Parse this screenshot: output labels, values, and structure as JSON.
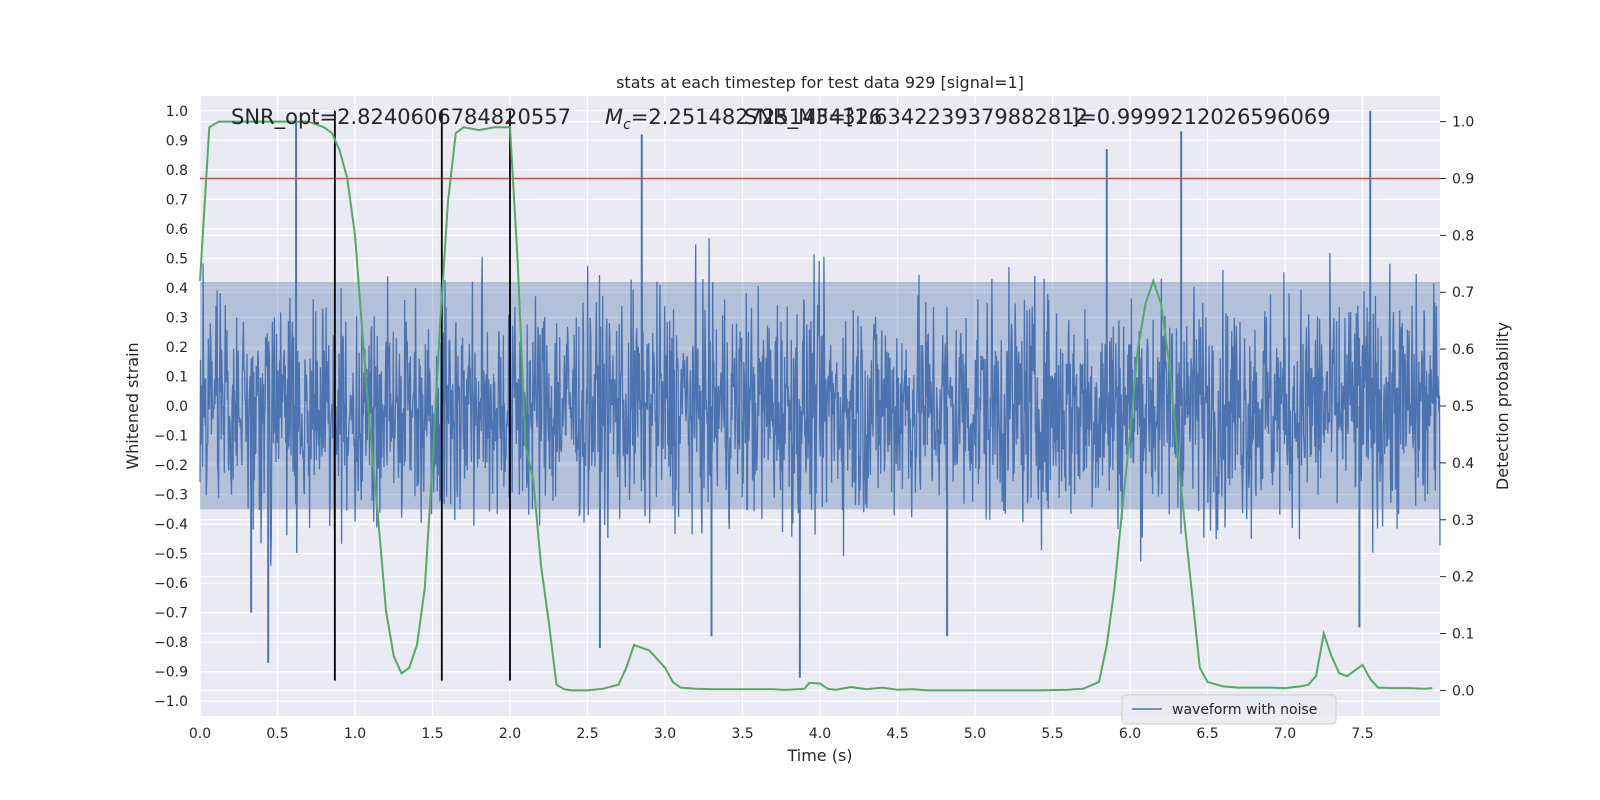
{
  "chart_data": {
    "type": "line",
    "title": "stats at each timestep for test data 929 [signal=1]",
    "xlabel": "Time (s)",
    "ylabel": "Whitened strain",
    "ylabel_right": "Detection probability",
    "xlim": [
      0.0,
      8.0
    ],
    "ylim": [
      -1.05,
      1.05
    ],
    "ylim_right": [
      -0.045,
      1.045
    ],
    "x_ticks": [
      "0.0",
      "0.5",
      "1.0",
      "1.5",
      "2.0",
      "2.5",
      "3.0",
      "3.5",
      "4.0",
      "4.5",
      "5.0",
      "5.5",
      "6.0",
      "6.5",
      "7.0",
      "7.5"
    ],
    "y_ticks": [
      "1.0",
      "0.9",
      "0.8",
      "0.7",
      "0.6",
      "0.5",
      "0.4",
      "0.3",
      "0.2",
      "0.1",
      "0.0",
      "−0.1",
      "−0.2",
      "−0.3",
      "−0.4",
      "−0.5",
      "−0.6",
      "−0.7",
      "−0.8",
      "−0.9",
      "−1.0"
    ],
    "y_ticks_right": [
      "1.0",
      "0.9",
      "0.8",
      "0.7",
      "0.6",
      "0.5",
      "0.4",
      "0.3",
      "0.2",
      "0.1",
      "0.0"
    ],
    "grid": true,
    "legend": {
      "position": "bottom-right",
      "entries": [
        "waveform with noise"
      ]
    },
    "annotations": {
      "snr_opt": "SNR_opt=2.8240606784820557",
      "mc_symbol": "M",
      "mc_sub": "c",
      "mc_value": "=2.2514827251434326",
      "snr_mf": "SNR_MF=[1.6342239379882812",
      "f": "]=0.9999212026596069"
    },
    "series": [
      {
        "name": "waveform with noise",
        "color": "#4c72b0",
        "kind": "noise-strain",
        "core_band": [
          -0.35,
          0.42
        ],
        "max_abs": 1.0,
        "sample_spikes": [
          {
            "x": 0.62,
            "y": 0.96
          },
          {
            "x": 0.44,
            "y": -0.87
          },
          {
            "x": 2.85,
            "y": 0.92
          },
          {
            "x": 3.87,
            "y": -0.92
          },
          {
            "x": 5.85,
            "y": 0.87
          },
          {
            "x": 6.33,
            "y": 0.93
          },
          {
            "x": 7.55,
            "y": 1.0
          },
          {
            "x": 7.48,
            "y": -0.75
          },
          {
            "x": 2.58,
            "y": -0.82
          },
          {
            "x": 3.3,
            "y": -0.78
          },
          {
            "x": 4.82,
            "y": -0.78
          },
          {
            "x": 0.33,
            "y": -0.7
          }
        ]
      },
      {
        "name": "",
        "axis": "right",
        "color": "#55a868",
        "x": [
          0.0,
          0.06,
          0.12,
          0.2,
          0.3,
          0.4,
          0.5,
          0.6,
          0.7,
          0.8,
          0.85,
          0.9,
          0.95,
          1.0,
          1.05,
          1.1,
          1.15,
          1.2,
          1.25,
          1.3,
          1.35,
          1.4,
          1.45,
          1.5,
          1.55,
          1.6,
          1.65,
          1.7,
          1.8,
          1.9,
          1.95,
          2.0,
          2.05,
          2.1,
          2.15,
          2.2,
          2.25,
          2.3,
          2.35,
          2.4,
          2.5,
          2.6,
          2.7,
          2.75,
          2.8,
          2.9,
          3.0,
          3.05,
          3.1,
          3.2,
          3.3,
          3.5,
          3.6,
          3.7,
          3.75,
          3.8,
          3.9,
          3.93,
          3.96,
          4.0,
          4.05,
          4.1,
          4.2,
          4.3,
          4.4,
          4.5,
          4.6,
          4.7,
          4.8,
          5.0,
          5.2,
          5.4,
          5.6,
          5.7,
          5.8,
          5.85,
          5.9,
          5.95,
          6.0,
          6.05,
          6.1,
          6.15,
          6.2,
          6.25,
          6.3,
          6.35,
          6.4,
          6.45,
          6.5,
          6.6,
          6.7,
          6.8,
          6.9,
          7.0,
          7.1,
          7.15,
          7.2,
          7.25,
          7.3,
          7.35,
          7.4,
          7.45,
          7.5,
          7.55,
          7.6,
          7.7,
          7.8,
          7.9,
          7.95
        ],
        "values": [
          0.72,
          0.99,
          1.0,
          1.0,
          1.0,
          1.0,
          1.0,
          1.0,
          1.0,
          0.99,
          0.98,
          0.95,
          0.9,
          0.8,
          0.62,
          0.45,
          0.3,
          0.14,
          0.06,
          0.03,
          0.04,
          0.08,
          0.18,
          0.4,
          0.65,
          0.86,
          0.98,
          0.99,
          0.985,
          0.99,
          0.99,
          0.99,
          0.75,
          0.43,
          0.37,
          0.22,
          0.12,
          0.01,
          0.002,
          0.0,
          0.0,
          0.003,
          0.01,
          0.04,
          0.08,
          0.07,
          0.04,
          0.015,
          0.005,
          0.003,
          0.002,
          0.002,
          0.002,
          0.002,
          0.001,
          0.001,
          0.003,
          0.013,
          0.013,
          0.012,
          0.003,
          0.001,
          0.006,
          0.002,
          0.005,
          0.001,
          0.002,
          0.0,
          0.0,
          0.0,
          0.0,
          0.0,
          0.001,
          0.003,
          0.015,
          0.08,
          0.18,
          0.32,
          0.45,
          0.6,
          0.68,
          0.72,
          0.68,
          0.58,
          0.44,
          0.3,
          0.17,
          0.04,
          0.015,
          0.007,
          0.005,
          0.005,
          0.005,
          0.004,
          0.007,
          0.01,
          0.025,
          0.1,
          0.06,
          0.03,
          0.025,
          0.035,
          0.045,
          0.02,
          0.005,
          0.004,
          0.004,
          0.003,
          0.004
        ]
      },
      {
        "name": "",
        "axis": "right",
        "color": "#c44e52",
        "kind": "hline",
        "value": 0.9
      }
    ],
    "vlines": {
      "color": "#000000",
      "x": [
        0.87,
        1.56,
        2.0
      ],
      "y_range": [
        -0.93,
        1.0
      ]
    }
  }
}
